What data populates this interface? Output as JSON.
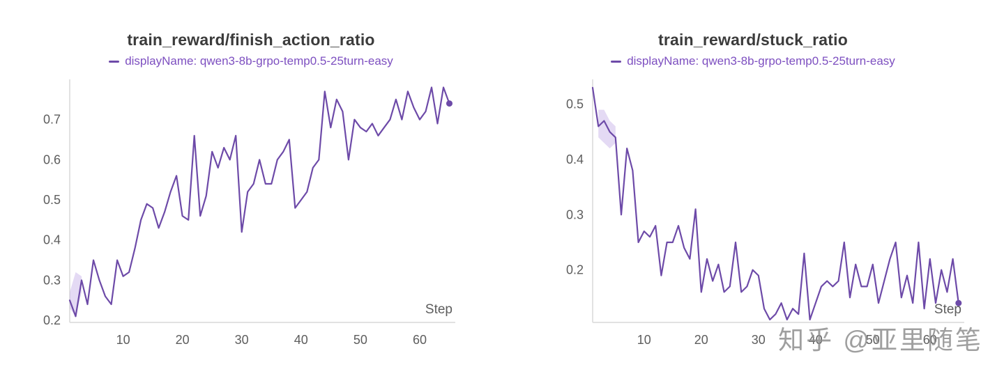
{
  "watermark": {
    "text": "知乎 @亚里随笔"
  },
  "colors": {
    "line": "#6d4aa8",
    "band": "#c3aee6",
    "legend": "#7d4fc0",
    "title": "#3b3b3b",
    "tick": "#5d5d5d",
    "axis": "#d9d9d9",
    "watermark": "#8f8f8f"
  },
  "chart_data": [
    {
      "type": "line",
      "title": "train_reward/finish_action_ratio",
      "legend": "displayName: qwen3-8b-grpo-temp0.5-25turn-easy",
      "xlabel": "Step",
      "xlim": [
        1,
        66
      ],
      "ylim": [
        0.195,
        0.8
      ],
      "xticks": [
        10,
        20,
        30,
        40,
        50,
        60
      ],
      "yticks": [
        0.2,
        0.3,
        0.4,
        0.5,
        0.6,
        0.7
      ],
      "grid": false,
      "legend_position": "top",
      "x": [
        1,
        2,
        3,
        4,
        5,
        6,
        7,
        8,
        9,
        10,
        11,
        12,
        13,
        14,
        15,
        16,
        17,
        18,
        19,
        20,
        21,
        22,
        23,
        24,
        25,
        26,
        27,
        28,
        29,
        30,
        31,
        32,
        33,
        34,
        35,
        36,
        37,
        38,
        39,
        40,
        41,
        42,
        43,
        44,
        45,
        46,
        47,
        48,
        49,
        50,
        51,
        52,
        53,
        54,
        55,
        56,
        57,
        58,
        59,
        60,
        61,
        62,
        63,
        64,
        65
      ],
      "series": [
        {
          "name": "qwen3-8b-grpo-temp0.5-25turn-easy",
          "values": [
            0.25,
            0.21,
            0.3,
            0.24,
            0.35,
            0.3,
            0.26,
            0.24,
            0.35,
            0.31,
            0.32,
            0.38,
            0.45,
            0.49,
            0.48,
            0.43,
            0.47,
            0.52,
            0.56,
            0.46,
            0.45,
            0.66,
            0.46,
            0.51,
            0.62,
            0.58,
            0.63,
            0.6,
            0.66,
            0.42,
            0.52,
            0.54,
            0.6,
            0.54,
            0.54,
            0.6,
            0.62,
            0.65,
            0.48,
            0.5,
            0.52,
            0.58,
            0.6,
            0.77,
            0.68,
            0.75,
            0.72,
            0.6,
            0.7,
            0.68,
            0.67,
            0.69,
            0.66,
            0.68,
            0.7,
            0.75,
            0.7,
            0.77,
            0.73,
            0.7,
            0.72,
            0.78,
            0.69,
            0.78,
            0.74
          ]
        }
      ],
      "band": {
        "x": [
          1,
          2,
          3
        ],
        "upper": [
          0.27,
          0.32,
          0.31
        ],
        "lower": [
          0.23,
          0.21,
          0.27
        ]
      },
      "end_marker": true
    },
    {
      "type": "line",
      "title": "train_reward/stuck_ratio",
      "legend": "displayName: qwen3-8b-grpo-temp0.5-25turn-easy",
      "xlabel": "Step",
      "xlim": [
        1,
        66
      ],
      "ylim": [
        0.105,
        0.545
      ],
      "xticks": [
        10,
        20,
        30,
        40,
        50,
        60
      ],
      "yticks": [
        0.2,
        0.3,
        0.4,
        0.5
      ],
      "grid": false,
      "legend_position": "top",
      "x": [
        1,
        2,
        3,
        4,
        5,
        6,
        7,
        8,
        9,
        10,
        11,
        12,
        13,
        14,
        15,
        16,
        17,
        18,
        19,
        20,
        21,
        22,
        23,
        24,
        25,
        26,
        27,
        28,
        29,
        30,
        31,
        32,
        33,
        34,
        35,
        36,
        37,
        38,
        39,
        40,
        41,
        42,
        43,
        44,
        45,
        46,
        47,
        48,
        49,
        50,
        51,
        52,
        53,
        54,
        55,
        56,
        57,
        58,
        59,
        60,
        61,
        62,
        63,
        64,
        65
      ],
      "series": [
        {
          "name": "qwen3-8b-grpo-temp0.5-25turn-easy",
          "values": [
            0.53,
            0.46,
            0.47,
            0.45,
            0.44,
            0.3,
            0.42,
            0.38,
            0.25,
            0.27,
            0.26,
            0.28,
            0.19,
            0.25,
            0.25,
            0.28,
            0.24,
            0.22,
            0.31,
            0.16,
            0.22,
            0.18,
            0.21,
            0.16,
            0.17,
            0.25,
            0.16,
            0.17,
            0.2,
            0.19,
            0.13,
            0.11,
            0.12,
            0.14,
            0.11,
            0.13,
            0.12,
            0.23,
            0.11,
            0.14,
            0.17,
            0.18,
            0.17,
            0.18,
            0.25,
            0.15,
            0.21,
            0.17,
            0.17,
            0.21,
            0.14,
            0.18,
            0.22,
            0.25,
            0.15,
            0.19,
            0.14,
            0.25,
            0.13,
            0.22,
            0.14,
            0.2,
            0.16,
            0.22,
            0.14
          ]
        }
      ],
      "band": {
        "x": [
          2,
          3,
          4,
          5
        ],
        "upper": [
          0.49,
          0.49,
          0.47,
          0.46
        ],
        "lower": [
          0.44,
          0.43,
          0.42,
          0.43
        ]
      },
      "end_marker": true
    }
  ]
}
